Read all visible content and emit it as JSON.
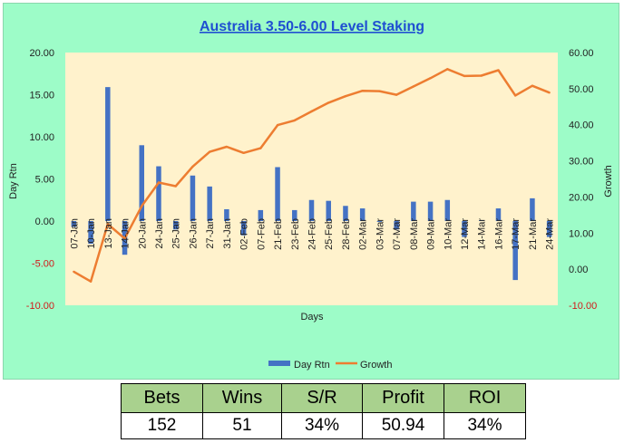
{
  "chart_data": {
    "type": "bar+line",
    "title": "Australia 3.50-6.00 Level Staking",
    "xlabel": "Days",
    "ylabel_left": "Day Rtn",
    "ylabel_right": "Growth",
    "ylim_left": [
      -10,
      20
    ],
    "ylim_right": [
      -10,
      60
    ],
    "yticks_left": [
      "20.00",
      "15.00",
      "10.00",
      "5.00",
      "0.00",
      "-5.00",
      "-10.00"
    ],
    "yticks_right": [
      "60.00",
      "50.00",
      "40.00",
      "30.00",
      "20.00",
      "10.00",
      "0.00",
      "-10.00"
    ],
    "categories": [
      "07-Jan",
      "10-Jan",
      "13-Jan",
      "14-Jan",
      "20-Jan",
      "24-Jan",
      "25-Jan",
      "26-Jan",
      "27-Jan",
      "31-Jan",
      "02-Feb",
      "07-Feb",
      "21-Feb",
      "23-Feb",
      "24-Feb",
      "25-Feb",
      "28-Feb",
      "02-Mar",
      "03-Mar",
      "07-Mar",
      "08-Mar",
      "09-Mar",
      "10-Mar",
      "12-Mar",
      "14-Mar",
      "16-Mar",
      "17-Mar",
      "21-Mar",
      "24-Mar"
    ],
    "series": [
      {
        "name": "Day Rtn",
        "kind": "bar",
        "axis": "left",
        "values": [
          -0.7,
          -2.7,
          15.9,
          -4.0,
          9.0,
          6.5,
          -1.0,
          5.4,
          4.1,
          1.4,
          -1.7,
          1.3,
          6.4,
          1.3,
          2.5,
          2.4,
          1.8,
          1.5,
          -0.1,
          -1.0,
          2.3,
          2.3,
          2.5,
          -1.9,
          0.1,
          1.5,
          -7.0,
          2.7,
          -1.9
        ]
      },
      {
        "name": "Growth",
        "kind": "line",
        "axis": "right",
        "values": [
          -0.7,
          -3.4,
          12.5,
          8.5,
          17.5,
          24.0,
          23.0,
          28.4,
          32.5,
          33.9,
          32.2,
          33.5,
          39.9,
          41.2,
          43.7,
          46.1,
          47.9,
          49.4,
          49.3,
          48.3,
          50.6,
          52.9,
          55.4,
          53.5,
          53.6,
          55.1,
          48.1,
          50.8,
          48.9
        ]
      }
    ],
    "legend_position": "bottom",
    "colors": {
      "bar": "#4472c4",
      "line": "#ed7d31",
      "plot_bg": "#fff2cc",
      "panel_bg": "#9dfcc8",
      "title": "#1f4fd1",
      "negative_tick": "#d21a1a"
    }
  },
  "stats": {
    "headers": [
      "Bets",
      "Wins",
      "S/R",
      "Profit",
      "ROI"
    ],
    "values": [
      "152",
      "51",
      "34%",
      "50.94",
      "34%"
    ]
  }
}
